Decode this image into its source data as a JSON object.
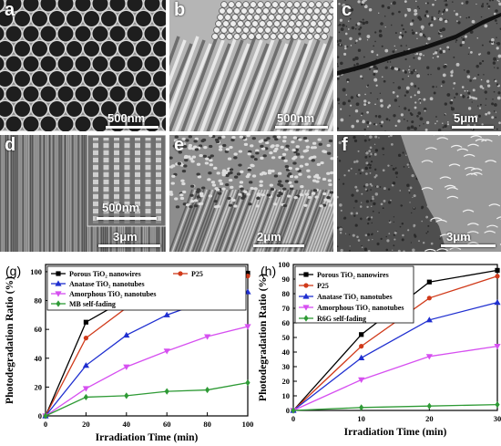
{
  "panels": [
    {
      "label": "a",
      "scalebar": "500nm"
    },
    {
      "label": "b",
      "scalebar": "500nm"
    },
    {
      "label": "c",
      "scalebar": "5μm"
    },
    {
      "label": "d",
      "scalebar": "3μm",
      "inset_scalebar": "500nm"
    },
    {
      "label": "e",
      "scalebar": "2μm"
    },
    {
      "label": "f",
      "scalebar": "3μm"
    }
  ],
  "chart_data": [
    {
      "type": "line",
      "panel_label": "(g)",
      "xlabel": "Irradiation Time (min)",
      "ylabel": "Photodegradation Ratio (%)",
      "xlim": [
        0,
        100
      ],
      "ylim": [
        0,
        105
      ],
      "xticks": [
        0,
        20,
        40,
        60,
        80,
        100
      ],
      "yticks": [
        0,
        20,
        40,
        60,
        80,
        100
      ],
      "legend_placement": "top",
      "series": [
        {
          "name": "Porous TiO₂ nanowires",
          "color": "#000000",
          "marker": "square",
          "x": [
            0,
            20,
            40,
            60,
            80,
            100
          ],
          "y": [
            0,
            65,
            81,
            93,
            96,
            99
          ]
        },
        {
          "name": "P25",
          "color": "#d03a1a",
          "marker": "circle",
          "x": [
            0,
            20,
            40,
            60,
            80,
            100
          ],
          "y": [
            0,
            54,
            75,
            86,
            94,
            97
          ]
        },
        {
          "name": "Anatase TiO₂ nanotubes",
          "color": "#1f2fd0",
          "marker": "triangle-up",
          "x": [
            0,
            20,
            40,
            60,
            80,
            100
          ],
          "y": [
            0,
            35,
            56,
            70,
            80,
            86
          ]
        },
        {
          "name": "Amorphous TiO₂ nanotubes",
          "color": "#d64ff0",
          "marker": "triangle-down",
          "x": [
            0,
            20,
            40,
            60,
            80,
            100
          ],
          "y": [
            0,
            19,
            34,
            45,
            55,
            62
          ]
        },
        {
          "name": "MB self-fading",
          "color": "#2e9a35",
          "marker": "diamond",
          "x": [
            0,
            20,
            40,
            60,
            80,
            100
          ],
          "y": [
            0,
            13,
            14,
            17,
            18,
            23
          ]
        }
      ]
    },
    {
      "type": "line",
      "panel_label": "(h)",
      "xlabel": "Irradiation Time (min)",
      "ylabel": "Photodegradation Ratio (%)",
      "xlim": [
        0,
        30
      ],
      "ylim": [
        0,
        100
      ],
      "xticks": [
        0,
        10,
        20,
        30
      ],
      "yticks": [
        0,
        10,
        20,
        30,
        40,
        50,
        60,
        70,
        80,
        90,
        100
      ],
      "legend_placement": "top-left",
      "series": [
        {
          "name": "Porous TiO₂ nanowires",
          "color": "#000000",
          "marker": "square",
          "x": [
            0,
            10,
            20,
            30
          ],
          "y": [
            0,
            52,
            88,
            96
          ]
        },
        {
          "name": "P25",
          "color": "#d03a1a",
          "marker": "circle",
          "x": [
            0,
            10,
            20,
            30
          ],
          "y": [
            0,
            44,
            77,
            92
          ]
        },
        {
          "name": "Anatase TiO₂ nanotubes",
          "color": "#1f2fd0",
          "marker": "triangle-up",
          "x": [
            0,
            10,
            20,
            30
          ],
          "y": [
            0,
            36,
            62,
            74
          ]
        },
        {
          "name": "Amorphous TiO₂ nanotubes",
          "color": "#d64ff0",
          "marker": "triangle-down",
          "x": [
            0,
            10,
            20,
            30
          ],
          "y": [
            0,
            21,
            37,
            44
          ]
        },
        {
          "name": "R6G self-fading",
          "color": "#2e9a35",
          "marker": "diamond",
          "x": [
            0,
            10,
            20,
            30
          ],
          "y": [
            0,
            2,
            3,
            4
          ]
        }
      ]
    }
  ]
}
